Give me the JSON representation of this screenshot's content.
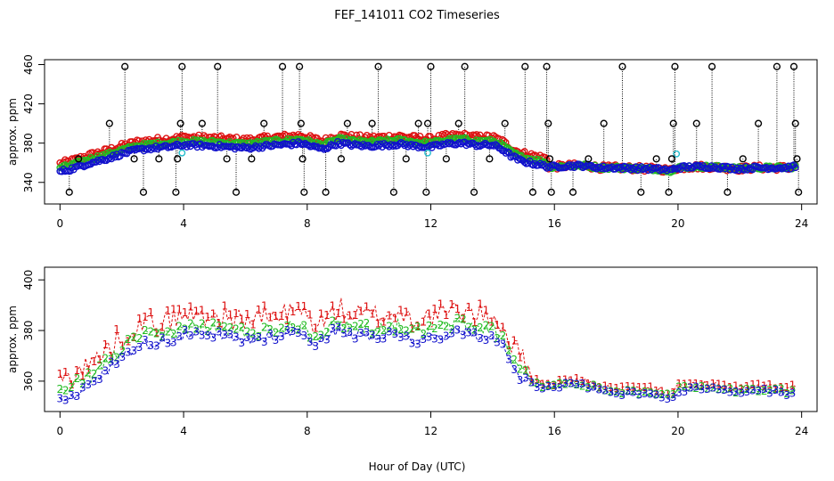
{
  "figure": {
    "title": "FEF_141011  CO2 Timeseries",
    "xlabel": "Hour of Day (UTC)"
  },
  "colors": {
    "series1": "#dd1111",
    "series2": "#22bb22",
    "series3": "#1111cc",
    "outlier": "#000000",
    "cyan": "#22bbcc"
  },
  "chart_data": [
    {
      "type": "scatter",
      "ylabel": "approx. ppm",
      "xlim": [
        -0.5,
        24.5
      ],
      "ylim": [
        318,
        465
      ],
      "xticks": [
        0,
        4,
        8,
        12,
        16,
        20,
        24
      ],
      "yticks": [
        340,
        380,
        420,
        460
      ],
      "outlier_values": [
        330,
        364,
        400,
        458
      ],
      "series_shape": {
        "hours": [
          0.0,
          0.3,
          0.6,
          1.0,
          1.5,
          2.0,
          2.5,
          3.0,
          3.5,
          4.0,
          5.0,
          6.0,
          7.0,
          7.5,
          7.8,
          8.1,
          8.5,
          9.0,
          9.5,
          10.0,
          10.5,
          11.0,
          11.5,
          12.0,
          12.5,
          13.0,
          13.5,
          14.0,
          14.3,
          14.6,
          14.9,
          15.2,
          15.5,
          15.8,
          16.0,
          16.5,
          17.0,
          17.5,
          18.0,
          19.0,
          19.6,
          19.75,
          20.0,
          20.5,
          21.0,
          21.5,
          22.0,
          22.5,
          23.0,
          23.5,
          23.8
        ],
        "ppm": [
          351,
          353,
          356,
          360,
          364,
          369,
          373,
          375,
          376,
          378,
          377,
          375,
          378,
          379,
          380,
          377,
          374,
          380,
          378,
          377,
          378,
          379,
          377,
          376,
          379,
          380,
          378,
          378,
          374,
          367,
          362,
          360,
          358,
          356,
          356,
          357,
          357,
          355,
          355,
          354,
          353,
          352,
          355,
          356,
          356,
          355,
          354,
          355,
          355,
          355,
          356
        ]
      },
      "series_offsets": {
        "red": 8,
        "green": 4,
        "blue": 0
      },
      "outliers": [
        {
          "x": 0.3,
          "y": 330
        },
        {
          "x": 0.6,
          "y": 364
        },
        {
          "x": 1.6,
          "y": 400
        },
        {
          "x": 2.1,
          "y": 458
        },
        {
          "x": 2.4,
          "y": 364
        },
        {
          "x": 2.7,
          "y": 330
        },
        {
          "x": 3.2,
          "y": 364
        },
        {
          "x": 3.75,
          "y": 330
        },
        {
          "x": 3.8,
          "y": 364
        },
        {
          "x": 3.9,
          "y": 400
        },
        {
          "x": 3.95,
          "y": 458
        },
        {
          "x": 4.6,
          "y": 400
        },
        {
          "x": 5.1,
          "y": 458
        },
        {
          "x": 5.4,
          "y": 364
        },
        {
          "x": 5.7,
          "y": 330
        },
        {
          "x": 6.2,
          "y": 364
        },
        {
          "x": 6.6,
          "y": 400
        },
        {
          "x": 7.2,
          "y": 458
        },
        {
          "x": 7.75,
          "y": 458
        },
        {
          "x": 7.8,
          "y": 400
        },
        {
          "x": 7.85,
          "y": 364
        },
        {
          "x": 7.9,
          "y": 330
        },
        {
          "x": 8.6,
          "y": 330
        },
        {
          "x": 9.1,
          "y": 364
        },
        {
          "x": 9.3,
          "y": 400
        },
        {
          "x": 10.1,
          "y": 400
        },
        {
          "x": 10.3,
          "y": 458
        },
        {
          "x": 10.8,
          "y": 330
        },
        {
          "x": 11.2,
          "y": 364
        },
        {
          "x": 11.6,
          "y": 400
        },
        {
          "x": 11.85,
          "y": 330
        },
        {
          "x": 11.9,
          "y": 400
        },
        {
          "x": 12.0,
          "y": 458
        },
        {
          "x": 12.5,
          "y": 364
        },
        {
          "x": 12.9,
          "y": 400
        },
        {
          "x": 13.1,
          "y": 458
        },
        {
          "x": 13.4,
          "y": 330
        },
        {
          "x": 13.9,
          "y": 364
        },
        {
          "x": 14.4,
          "y": 400
        },
        {
          "x": 15.05,
          "y": 458
        },
        {
          "x": 15.3,
          "y": 330
        },
        {
          "x": 15.75,
          "y": 458
        },
        {
          "x": 15.8,
          "y": 400
        },
        {
          "x": 15.85,
          "y": 364
        },
        {
          "x": 15.9,
          "y": 330
        },
        {
          "x": 16.6,
          "y": 330
        },
        {
          "x": 17.1,
          "y": 364
        },
        {
          "x": 17.6,
          "y": 400
        },
        {
          "x": 18.2,
          "y": 458
        },
        {
          "x": 18.8,
          "y": 330
        },
        {
          "x": 19.3,
          "y": 364
        },
        {
          "x": 19.7,
          "y": 330
        },
        {
          "x": 19.8,
          "y": 364
        },
        {
          "x": 19.85,
          "y": 400
        },
        {
          "x": 19.9,
          "y": 458
        },
        {
          "x": 20.6,
          "y": 400
        },
        {
          "x": 21.1,
          "y": 458
        },
        {
          "x": 21.6,
          "y": 330
        },
        {
          "x": 22.1,
          "y": 364
        },
        {
          "x": 22.6,
          "y": 400
        },
        {
          "x": 23.2,
          "y": 458
        },
        {
          "x": 23.75,
          "y": 458
        },
        {
          "x": 23.8,
          "y": 400
        },
        {
          "x": 23.85,
          "y": 364
        },
        {
          "x": 23.9,
          "y": 330
        }
      ],
      "cyan_points": [
        {
          "x": 3.95,
          "y": 370
        },
        {
          "x": 11.9,
          "y": 370
        },
        {
          "x": 19.95,
          "y": 369
        }
      ]
    },
    {
      "type": "scatter",
      "ylabel": "approx. ppm",
      "xlim": [
        -0.5,
        24.5
      ],
      "ylim": [
        348,
        405
      ],
      "xticks": [
        0,
        4,
        8,
        12,
        16,
        20,
        24
      ],
      "yticks": [
        360,
        380,
        400
      ],
      "legend": [
        "1",
        "2",
        "3"
      ],
      "series_shape": {
        "hours": [
          0.0,
          0.3,
          0.6,
          1.0,
          1.5,
          2.0,
          2.5,
          3.0,
          3.5,
          4.0,
          5.0,
          6.0,
          7.0,
          7.5,
          7.8,
          8.1,
          8.5,
          9.0,
          9.5,
          10.0,
          10.5,
          11.0,
          11.5,
          12.0,
          12.5,
          13.0,
          13.5,
          14.0,
          14.3,
          14.6,
          14.9,
          15.2,
          15.5,
          15.8,
          16.0,
          16.5,
          17.0,
          17.5,
          18.0,
          19.0,
          19.6,
          19.75,
          20.0,
          20.5,
          21.0,
          21.5,
          22.0,
          22.5,
          23.0,
          23.5,
          23.8
        ],
        "ppm": [
          352,
          354,
          356,
          359,
          364,
          370,
          374,
          375,
          376,
          378,
          378,
          376,
          378,
          379,
          380,
          376,
          375,
          381,
          378,
          378,
          378,
          379,
          376,
          377,
          379,
          380,
          378,
          378,
          374,
          367,
          362,
          359,
          358,
          357,
          357,
          359,
          358,
          356,
          355,
          355,
          354,
          353,
          356,
          357,
          357,
          356,
          355,
          356,
          356,
          355,
          356
        ]
      },
      "series_offsets": {
        "red": 8,
        "green": 3,
        "blue": 0
      }
    }
  ]
}
